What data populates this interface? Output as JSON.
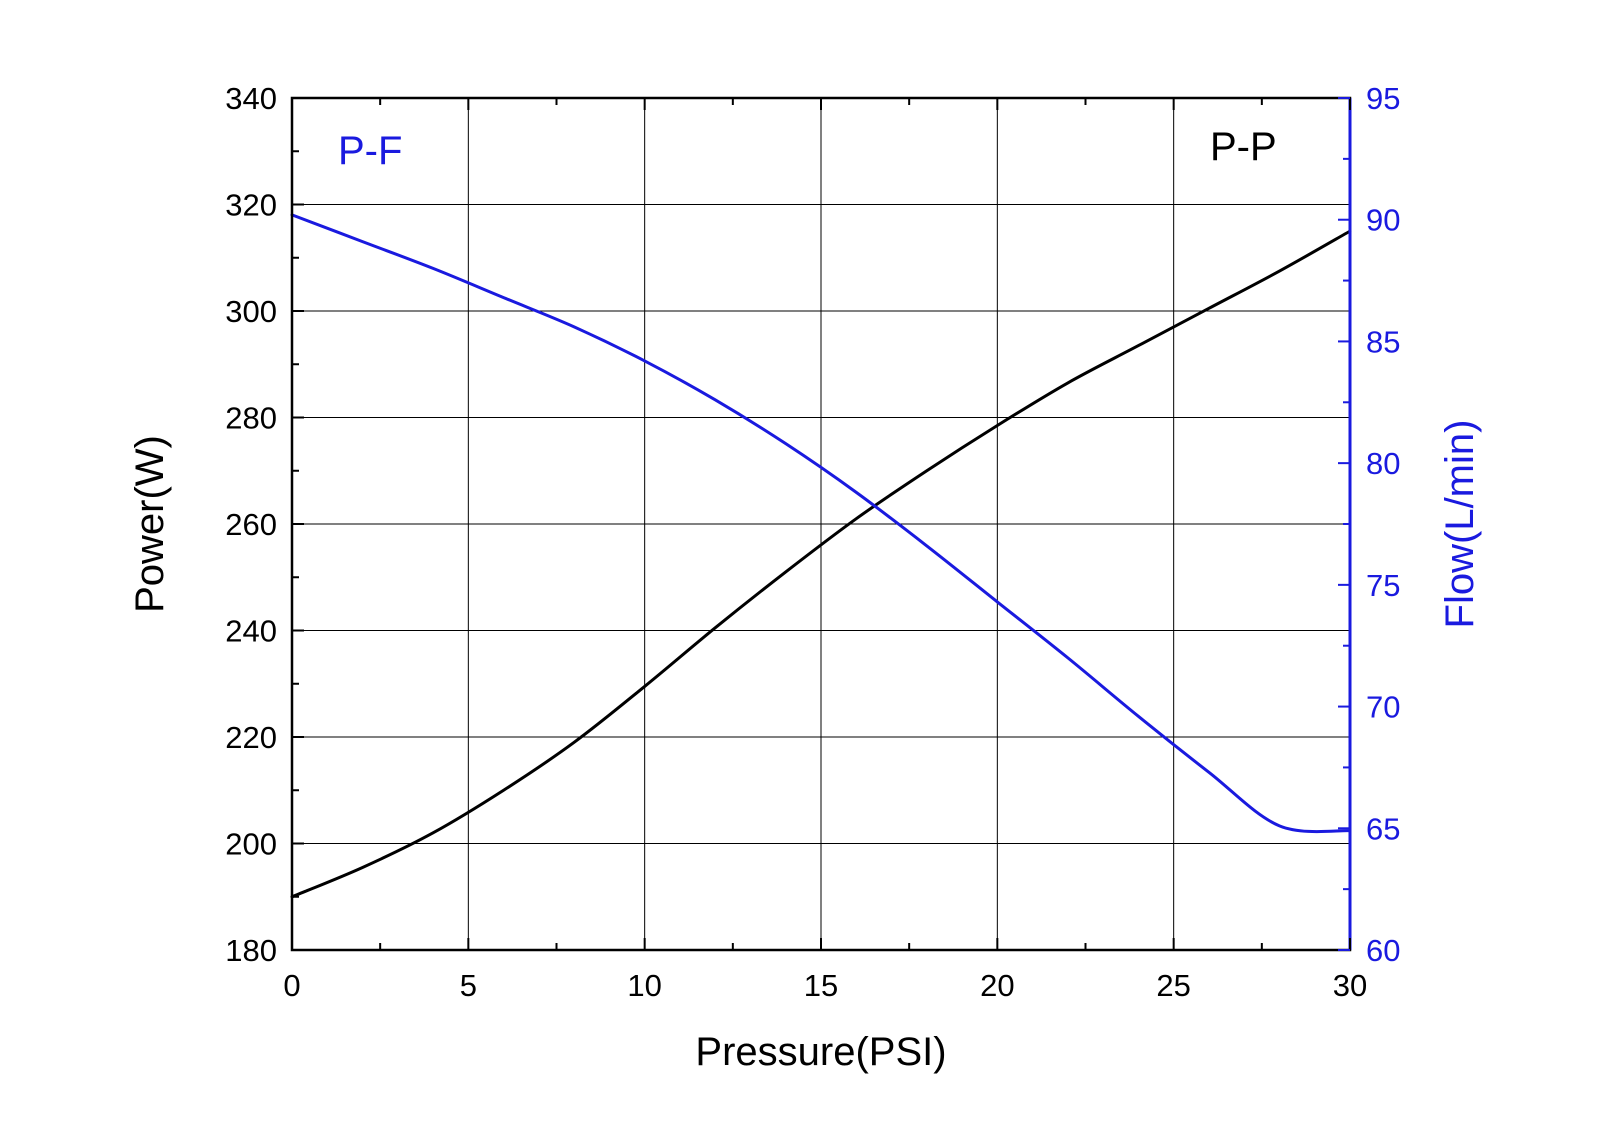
{
  "chart_data": {
    "type": "line",
    "title": "",
    "xlabel": "Pressure(PSI)",
    "ylabel_left": "Power(W)",
    "ylabel_right": "Flow(L/min)",
    "xlim": [
      0,
      30
    ],
    "ylim_left": [
      180,
      340
    ],
    "ylim_right": [
      60,
      95
    ],
    "x_ticks": [
      "0",
      "5",
      "10",
      "15",
      "20",
      "25",
      "30"
    ],
    "y_left_ticks": [
      "180",
      "200",
      "220",
      "240",
      "260",
      "280",
      "300",
      "320",
      "340"
    ],
    "y_right_ticks": [
      "60",
      "65",
      "70",
      "75",
      "80",
      "85",
      "90",
      "95"
    ],
    "grid": true,
    "annotations": [
      {
        "text": "P-F",
        "color": "#1a1adf",
        "position": "top-left"
      },
      {
        "text": "P-P",
        "color": "#000000",
        "position": "top-right"
      }
    ],
    "series": [
      {
        "name": "P-P",
        "axis": "left",
        "color": "#000000",
        "x": [
          0,
          2,
          4,
          6,
          8,
          10,
          12,
          14,
          16,
          18,
          20,
          22,
          24,
          26,
          28,
          30
        ],
        "y": [
          190,
          195.5,
          202,
          210,
          219,
          229.5,
          240.5,
          251,
          261,
          270,
          278.5,
          286.5,
          293.5,
          300.5,
          307.5,
          315
        ]
      },
      {
        "name": "P-F",
        "axis": "right",
        "color": "#1a1adf",
        "x": [
          0,
          2,
          4,
          6,
          8,
          10,
          12,
          14,
          16,
          18,
          20,
          22,
          24,
          26,
          28,
          30
        ],
        "y": [
          90.2,
          89.1,
          88,
          86.8,
          85.6,
          84.2,
          82.6,
          80.8,
          78.8,
          76.6,
          74.3,
          72,
          69.6,
          67.3,
          65.1,
          64.9
        ]
      }
    ]
  }
}
